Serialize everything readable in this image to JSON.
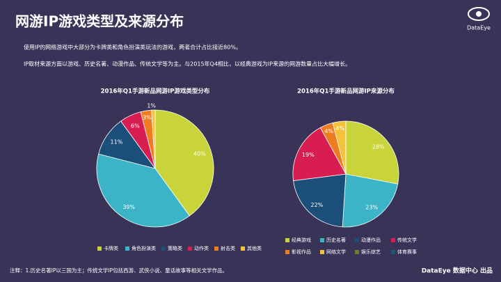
{
  "title": "网游IP游戏类型及来源分布",
  "brand": "DataEye",
  "paragraphs": [
    "使用IP的网络游戏中大部分为卡牌类和角色扮演类玩法的游戏，两者合计占比接近80%。",
    "IP取材来源方面以游戏、历史名著、动漫作品、传统文学等为主。与2015年Q4相比，以经典游戏为IP来源的网游数量占比大幅增长。"
  ],
  "footnote": "注释：1.历史名著IP以三国为主；传统文学IP包括西游、武侠小说、童话故事等相关文学作品。",
  "credit": "DataEye 数据中心 出品",
  "chart_data": [
    {
      "type": "pie",
      "title": "2016年Q1手游新品网游IP游戏类型分布",
      "categories": [
        "卡牌类",
        "角色扮演类",
        "策略类",
        "动作类",
        "射击类",
        "其他类"
      ],
      "values": [
        40,
        39,
        11,
        6,
        3,
        1
      ],
      "value_labels": [
        "40%",
        "39%",
        "11%",
        "6%",
        "3%",
        "1%"
      ],
      "colors": [
        "#c9d43a",
        "#3cb4c8",
        "#1b4f7a",
        "#d81e50",
        "#f07c22",
        "#f5c33a"
      ]
    },
    {
      "type": "pie",
      "title": "2016年Q1手游新品网游IP来源分布",
      "categories": [
        "经典游戏",
        "历史名著",
        "动漫作品",
        "传统文学",
        "影视作品",
        "网络文学",
        "娱乐综艺",
        "体育赛事"
      ],
      "values": [
        28,
        23,
        22,
        19,
        4,
        4,
        0,
        0
      ],
      "value_labels": [
        "28%",
        "23%",
        "22%",
        "19%",
        "4%",
        "4%",
        null,
        null
      ],
      "colors": [
        "#c9d43a",
        "#3cb4c8",
        "#1b4f7a",
        "#d81e50",
        "#f07c22",
        "#f5c33a",
        "#6b7d2a",
        "#1a5a70"
      ]
    }
  ]
}
